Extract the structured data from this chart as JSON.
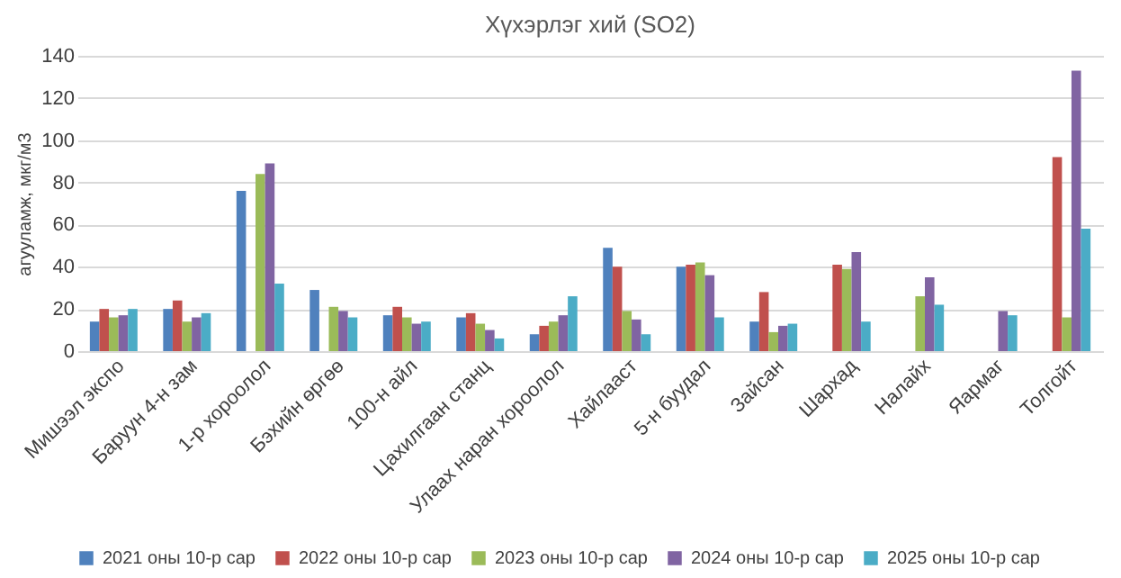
{
  "chart_data": {
    "type": "bar",
    "title": "Хүхэрлэг хий (SO2)",
    "ylabel": "агууламж, мкг/м3",
    "categories": [
      "Мишээл экспо",
      "Баруун 4-н зам",
      "1-р хороолол",
      "Бэхийн өргөө",
      "100-н айл",
      "Цахилгаан станц",
      "Улаах наран хороолол",
      "Хайлааст",
      "5-н буудал",
      "Зайсан",
      "Шархад",
      "Налайх",
      "Яармаг",
      "Толгойт"
    ],
    "series": [
      {
        "name": "2021 оны 10-р сар",
        "color": "#4f81bd",
        "values": [
          14,
          20,
          76,
          29,
          17,
          16,
          8,
          49,
          40,
          14,
          null,
          null,
          null,
          null
        ]
      },
      {
        "name": "2022 оны 10-р сар",
        "color": "#c0504d",
        "values": [
          20,
          24,
          null,
          null,
          21,
          18,
          12,
          40,
          41,
          28,
          41,
          null,
          null,
          92
        ]
      },
      {
        "name": "2023 оны 10-р сар",
        "color": "#9bbb59",
        "values": [
          16,
          14,
          84,
          21,
          16,
          13,
          14,
          19,
          42,
          9,
          39,
          26,
          null,
          16
        ]
      },
      {
        "name": "2024 оны 10-р сар",
        "color": "#8064a2",
        "values": [
          17,
          16,
          89,
          19,
          13,
          10,
          17,
          15,
          36,
          12,
          47,
          35,
          19,
          133
        ]
      },
      {
        "name": "2025 оны 10-р сар",
        "color": "#4bacc6",
        "values": [
          20,
          18,
          32,
          16,
          14,
          6,
          26,
          8,
          16,
          13,
          14,
          22,
          17,
          58
        ]
      }
    ],
    "ylim": [
      0,
      140
    ],
    "yticks": [
      0,
      20,
      40,
      60,
      80,
      100,
      120,
      140
    ],
    "grid": "y",
    "legend": "bottom"
  }
}
